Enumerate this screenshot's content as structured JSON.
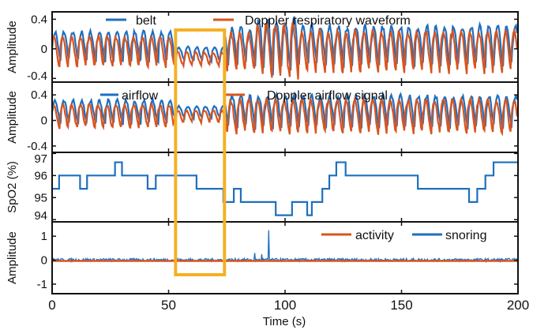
{
  "chart_data": [
    {
      "type": "line",
      "panel": "respiration",
      "ylabel": "Amplitude",
      "ylim": [
        -0.45,
        0.5
      ],
      "yticks": [
        "0.4",
        "0",
        "-0.4"
      ],
      "yticks_values": [
        0.4,
        0,
        -0.4
      ],
      "series": [
        {
          "name": "belt",
          "color": "#1f6fbf"
        },
        {
          "name": "Doppler respiratory waveform",
          "color": "#d9541e"
        }
      ],
      "signal_model": {
        "breath_period_s": 3.8,
        "segments": [
          {
            "from": 0,
            "to": 52,
            "amplitude": 0.22,
            "offset": 0.0
          },
          {
            "from": 52,
            "to": 74,
            "amplitude": 0.1,
            "offset": -0.1
          },
          {
            "from": 74,
            "to": 88,
            "amplitude": 0.28,
            "offset": 0.0
          },
          {
            "from": 88,
            "to": 106,
            "amplitude": 0.4,
            "offset": 0.0
          },
          {
            "from": 106,
            "to": 200,
            "amplitude": 0.3,
            "offset": 0.0
          }
        ]
      }
    },
    {
      "type": "line",
      "panel": "airflow",
      "ylabel": "Amplitude",
      "ylim": [
        -0.5,
        0.6
      ],
      "yticks": [
        "0.4",
        "0",
        "-0.4"
      ],
      "yticks_values": [
        0.4,
        0,
        -0.4
      ],
      "series": [
        {
          "name": "airflow",
          "color": "#1f6fbf"
        },
        {
          "name": "Doppler airflow signal",
          "color": "#d9541e"
        }
      ],
      "signal_model": {
        "breath_period_s": 3.8,
        "segments": [
          {
            "from": 0,
            "to": 52,
            "amplitude": 0.2,
            "offset": 0.1
          },
          {
            "from": 52,
            "to": 74,
            "amplitude": 0.1,
            "offset": 0.1
          },
          {
            "from": 74,
            "to": 200,
            "amplitude": 0.28,
            "offset": 0.1
          }
        ]
      }
    },
    {
      "type": "line",
      "panel": "spo2",
      "ylabel": "SpO2 (%)",
      "ylim": [
        93.9,
        97.05
      ],
      "yticks": [
        "97",
        "96",
        "95",
        "94"
      ],
      "yticks_values": [
        97,
        96,
        95,
        94
      ],
      "series": [
        {
          "name": "SpO2",
          "color": "#1f6fbf",
          "steps": [
            [
              0,
              95.4
            ],
            [
              3,
              96.0
            ],
            [
              12,
              95.4
            ],
            [
              15,
              96.0
            ],
            [
              27,
              96.6
            ],
            [
              30,
              96.0
            ],
            [
              41,
              95.4
            ],
            [
              44.5,
              96.0
            ],
            [
              62,
              95.4
            ],
            [
              73.5,
              94.8
            ],
            [
              78,
              95.4
            ],
            [
              81,
              94.8
            ],
            [
              96,
              94.2
            ],
            [
              103,
              94.8
            ],
            [
              109.5,
              94.2
            ],
            [
              111.5,
              94.8
            ],
            [
              116,
              95.4
            ],
            [
              119,
              96.0
            ],
            [
              122,
              96.6
            ],
            [
              126,
              96.0
            ],
            [
              157,
              95.4
            ],
            [
              179,
              94.8
            ],
            [
              182.5,
              95.4
            ],
            [
              186,
              96.0
            ],
            [
              189.5,
              96.6
            ],
            [
              200,
              96.6
            ]
          ]
        }
      ]
    },
    {
      "type": "line",
      "panel": "activity-snoring",
      "ylabel": "Amplitude",
      "ylim": [
        -1.4,
        1.6
      ],
      "yticks": [
        "1",
        "0",
        "-1"
      ],
      "yticks_values": [
        1,
        0,
        -1
      ],
      "series": [
        {
          "name": "activity",
          "color": "#d9541e",
          "level": -0.03
        },
        {
          "name": "snoring",
          "color": "#1f6fbf",
          "noise": 0.06,
          "spikes": [
            [
              87,
              0.3
            ],
            [
              90,
              0.25
            ],
            [
              93,
              1.25
            ]
          ]
        }
      ]
    }
  ],
  "x_axis": {
    "label": "Time (s)",
    "xlim": [
      0,
      200
    ],
    "ticks": [
      "0",
      "50",
      "100",
      "150",
      "200"
    ],
    "tick_values": [
      0,
      50,
      100,
      150,
      200
    ]
  },
  "highlight": {
    "from": 53,
    "to": 74,
    "color": "#f5b026"
  }
}
